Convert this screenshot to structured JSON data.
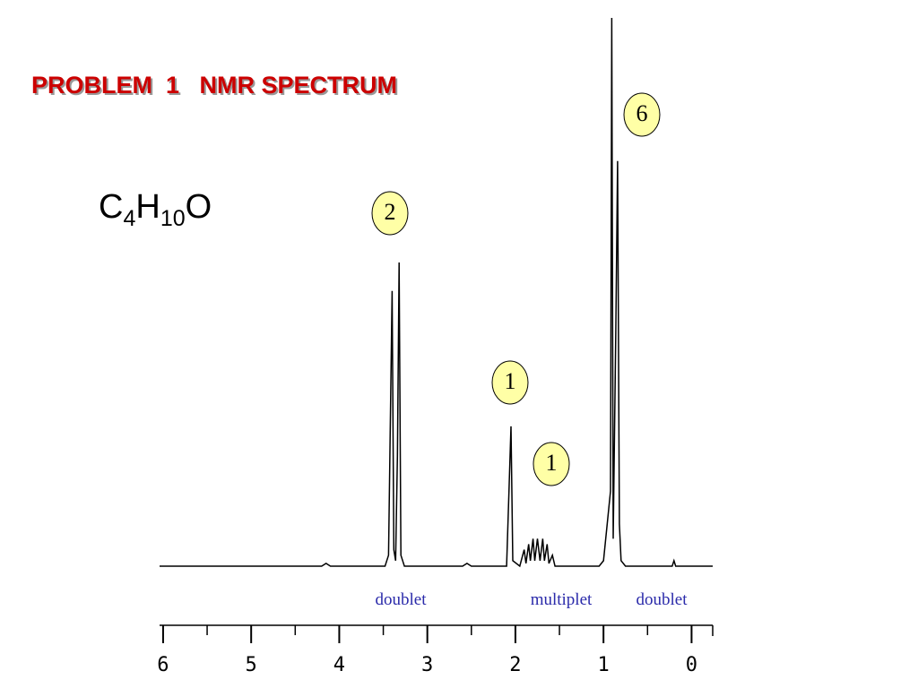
{
  "chart_data": {
    "type": "line",
    "title": "PROBLEM  1   NMR SPECTRUM",
    "formula": [
      "C",
      "4",
      "H",
      "10",
      "O"
    ],
    "annotations": [
      "6",
      "2",
      "1",
      "1"
    ],
    "multiplicity_labels": [
      "doublet",
      "multiplet",
      "doublet"
    ],
    "x": [
      6.04,
      4.2,
      4.15,
      4.1,
      3.48,
      3.44,
      3.4,
      3.38,
      3.36,
      3.34,
      3.32,
      3.3,
      3.26,
      2.6,
      2.55,
      2.5,
      2.1,
      2.07,
      2.05,
      2.03,
      1.95,
      1.9,
      1.88,
      1.85,
      1.83,
      1.8,
      1.78,
      1.75,
      1.72,
      1.69,
      1.67,
      1.64,
      1.62,
      1.58,
      1.55,
      1.05,
      1.0,
      0.92,
      0.906,
      0.89,
      0.86,
      0.84,
      0.82,
      0.8,
      0.75,
      0.22,
      0.2,
      0.18,
      -0.24
    ],
    "series": [
      {
        "color": "#000000",
        "values": [
          0,
          0,
          0.5,
          0,
          0,
          2,
          50.2,
          3,
          1,
          20,
          55.4,
          2,
          0,
          0,
          0.5,
          0,
          0,
          15,
          25.5,
          1,
          0,
          3,
          0.5,
          4,
          1,
          5,
          1,
          5,
          1,
          5,
          1,
          4,
          0.5,
          2,
          0,
          0,
          1,
          13.7,
          100,
          5,
          42.8,
          73.9,
          7.7,
          1,
          0,
          0,
          1,
          0,
          0
        ]
      }
    ],
    "xlim": [
      6.04,
      -0.24
    ],
    "ylim": [
      0,
      100
    ],
    "xticks": [
      6,
      5,
      4,
      3,
      2,
      1,
      0
    ],
    "xminorticks": [
      5.5,
      4.5,
      3.5,
      2.5,
      1.5,
      0.5
    ]
  }
}
